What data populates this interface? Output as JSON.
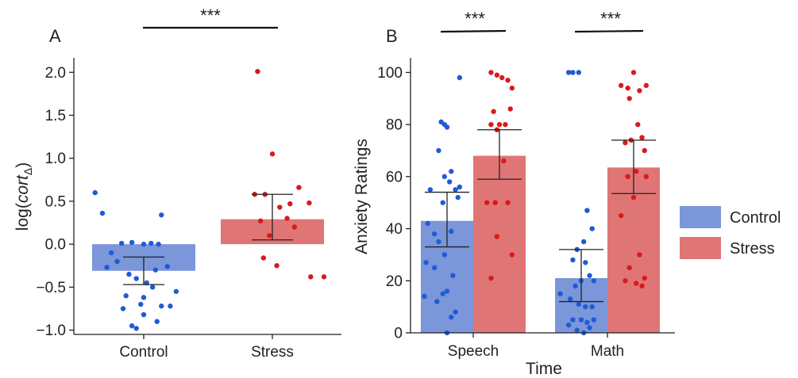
{
  "chart_data": [
    {
      "panel": "A",
      "type": "bar",
      "categories": [
        "Control",
        "Stress"
      ],
      "ylabel_base": "log(",
      "ylabel_italic": "cort",
      "ylabel_sub": "Δ",
      "ylabel_end": ")",
      "xlabel": "",
      "ylim": [
        -1.05,
        2.15
      ],
      "yticks": [
        -1.0,
        -0.5,
        0.0,
        0.5,
        1.0,
        1.5,
        2.0
      ],
      "ytick_labels": [
        "−1.0",
        "−0.5",
        "0.0",
        "0.5",
        "1.0",
        "1.5",
        "2.0"
      ],
      "grid": false,
      "bars": [
        {
          "category": "Control",
          "mean": -0.31,
          "err_low": -0.47,
          "err_high": -0.15,
          "color": "#7b96d9"
        },
        {
          "category": "Stress",
          "mean": 0.29,
          "err_low": 0.05,
          "err_high": 0.58,
          "color": "#e07575"
        }
      ],
      "points": [
        {
          "category": "Control",
          "color": "#1f5bd6",
          "jitter": [
            -0.33,
            -0.28,
            -0.15,
            -0.08,
            0.0,
            0.05,
            0.1,
            0.12,
            -0.22,
            -0.18,
            -0.25,
            0.16,
            0.08,
            -0.1,
            -0.05,
            0.02,
            0.22,
            -0.12,
            0.0,
            0.06,
            -0.02,
            0.12,
            -0.14,
            0.18,
            0.0,
            -0.05,
            0.09,
            -0.08
          ],
          "values": [
            0.6,
            0.36,
            0.01,
            0.02,
            0.0,
            0.01,
            0.0,
            0.34,
            -0.1,
            -0.2,
            -0.27,
            -0.26,
            -0.3,
            -0.35,
            -0.4,
            -0.45,
            -0.55,
            -0.6,
            -0.62,
            -0.5,
            -0.7,
            -0.72,
            -0.75,
            -0.72,
            -0.82,
            -0.98,
            -0.9,
            -0.95
          ]
        },
        {
          "category": "Stress",
          "color": "#d91a1a",
          "jitter": [
            -0.1,
            0.0,
            -0.12,
            -0.05,
            0.18,
            0.25,
            0.12,
            0.05,
            -0.08,
            0.1,
            0.15,
            -0.02,
            0.03,
            0.26,
            0.35,
            -0.06
          ],
          "values": [
            2.01,
            1.05,
            0.58,
            0.58,
            0.66,
            0.48,
            0.47,
            0.43,
            0.27,
            0.3,
            0.2,
            0.1,
            -0.25,
            -0.38,
            -0.38,
            -0.16
          ]
        }
      ],
      "significance": "***"
    },
    {
      "panel": "B",
      "type": "bar",
      "categories": [
        "Speech",
        "Math"
      ],
      "xlabel": "Time",
      "ylabel": "Anxiety Ratings",
      "ylim": [
        0,
        105
      ],
      "yticks": [
        0,
        20,
        40,
        60,
        80,
        100
      ],
      "grid": false,
      "series": [
        {
          "name": "Control",
          "color": "#7b96d9",
          "point_color": "#1f5bd6",
          "means": [
            43,
            21
          ],
          "err_low": [
            33,
            12
          ],
          "err_high": [
            54,
            32
          ]
        },
        {
          "name": "Stress",
          "color": "#e07575",
          "point_color": "#d91a1a",
          "means": [
            68,
            63.5
          ],
          "err_low": [
            59,
            53.5
          ],
          "err_high": [
            78,
            74
          ]
        }
      ],
      "points": [
        {
          "category": "Speech",
          "series": "Control",
          "jitter": [
            0.3,
            0.08,
            0.12,
            0.15,
            0.05,
            0.12,
            -0.05,
            0.2,
            0.3,
            0.18,
            0.25,
            0.28,
            0.1,
            -0.08,
            0.0,
            0.05,
            0.2,
            0.12,
            -0.1,
            0.0,
            0.22,
            0.15,
            0.1,
            -0.12,
            0.03,
            0.25,
            0.2,
            0.15
          ],
          "values": [
            98,
            81,
            80,
            79,
            70,
            60,
            55,
            62,
            56,
            58,
            55,
            52,
            50,
            42,
            38,
            35,
            39,
            30,
            27,
            25,
            22,
            16,
            15,
            14,
            12,
            8,
            6,
            0
          ]
        },
        {
          "category": "Speech",
          "series": "Stress",
          "jitter": [
            0.05,
            0.12,
            0.18,
            0.25,
            0.3,
            0.08,
            0.15,
            0.22,
            0.28,
            0.05,
            0.12,
            0.2,
            0.1,
            0.0,
            0.25,
            0.12,
            0.3,
            0.05
          ],
          "values": [
            100,
            99,
            98,
            97,
            94,
            85,
            80,
            80,
            86,
            80,
            78,
            66,
            50,
            50,
            50,
            37,
            30,
            21
          ]
        },
        {
          "category": "Math",
          "series": "Control",
          "jitter": [
            0.0,
            0.05,
            0.12,
            0.22,
            0.28,
            0.18,
            0.1,
            0.05,
            0.2,
            0.25,
            0.3,
            0.15,
            0.08,
            -0.1,
            0.02,
            0.12,
            0.2,
            0.28,
            0.3,
            0.05,
            0.15,
            0.22,
            0.0,
            0.25,
            0.1,
            0.18
          ],
          "values": [
            100,
            100,
            100,
            47,
            40,
            35,
            32,
            28,
            27,
            22,
            20,
            20,
            18,
            15,
            13,
            11,
            10,
            10,
            5,
            5,
            5,
            4,
            3,
            2,
            1,
            0
          ]
        },
        {
          "category": "Math",
          "series": "Stress",
          "jitter": [
            0.0,
            0.08,
            0.15,
            0.22,
            0.3,
            0.1,
            0.2,
            0.05,
            0.25,
            0.12,
            0.28,
            0.18,
            0.08,
            0.3,
            0.15,
            0.0,
            0.22,
            0.1,
            0.28,
            0.05,
            0.18,
            0.25
          ],
          "values": [
            95,
            94,
            100,
            93,
            95,
            90,
            80,
            73,
            75,
            74,
            70,
            62,
            60,
            60,
            52,
            45,
            30,
            25,
            21,
            20,
            19,
            18
          ]
        }
      ],
      "significance": [
        "***",
        "***"
      ],
      "legend": {
        "placement": "right",
        "entries": [
          "Control",
          "Stress"
        ]
      }
    }
  ],
  "panel_labels": [
    "A",
    "B"
  ]
}
